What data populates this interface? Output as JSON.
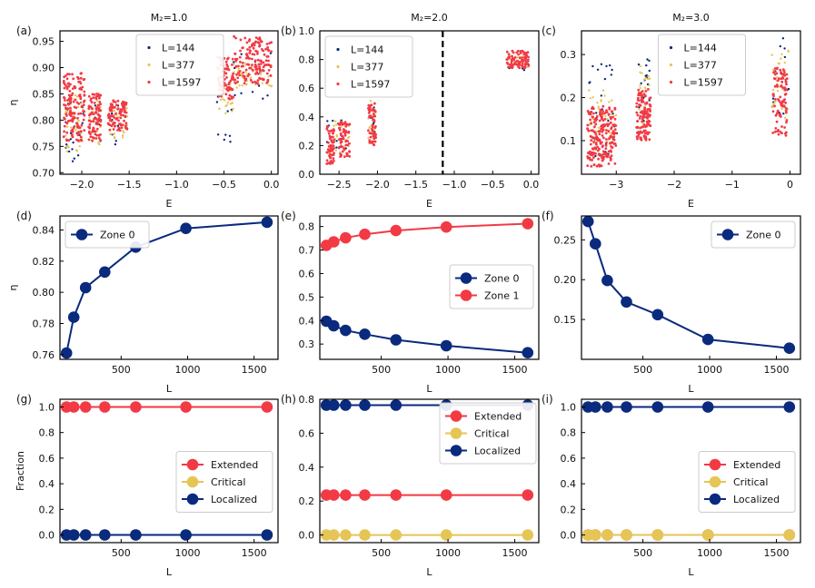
{
  "figure": {
    "palette": {
      "red": "#f23a45",
      "yellow": "#e5c556",
      "navy": "#0a2a7d",
      "axis": "#000000",
      "legend_border": "#cccccc"
    }
  },
  "chart_data": [
    {
      "id": "a",
      "panel_label": "(a)",
      "type": "scatter",
      "title": "M₂=1.0",
      "xlabel": "E",
      "ylabel": "η",
      "xlim": [
        -2.23,
        0.07
      ],
      "ylim": [
        0.697,
        0.97
      ],
      "xticks": [
        -2.0,
        -1.5,
        -1.0,
        -0.5,
        0.0
      ],
      "xtick_labels": [
        "−2.0",
        "−1.5",
        "−1.0",
        "−0.5",
        "0.0"
      ],
      "yticks": [
        0.7,
        0.75,
        0.8,
        0.85,
        0.9,
        0.95
      ],
      "ytick_labels": [
        "0.70",
        "0.75",
        "0.80",
        "0.85",
        "0.90",
        "0.95"
      ],
      "legend": {
        "position": "upper-center",
        "marker": "dot",
        "entries": [
          "L=144",
          "L=377",
          "L=1597"
        ]
      },
      "series": [
        {
          "name": "L=144",
          "color": "navy",
          "clusters": [
            {
              "x": [
                -2.18,
                -1.98
              ],
              "y": [
                0.72,
                0.84
              ],
              "n": 22
            },
            {
              "x": [
                -1.9,
                -1.78
              ],
              "y": [
                0.76,
                0.83
              ],
              "n": 10
            },
            {
              "x": [
                -1.7,
                -1.52
              ],
              "y": [
                0.75,
                0.83
              ],
              "n": 12
            },
            {
              "x": [
                -0.58,
                -0.42
              ],
              "y": [
                0.74,
                0.86
              ],
              "n": 10
            },
            {
              "x": [
                -0.4,
                0.0
              ],
              "y": [
                0.84,
                0.93
              ],
              "n": 18
            }
          ]
        },
        {
          "name": "L=377",
          "color": "yellow",
          "clusters": [
            {
              "x": [
                -2.18,
                -1.98
              ],
              "y": [
                0.74,
                0.85
              ],
              "n": 40
            },
            {
              "x": [
                -1.92,
                -1.8
              ],
              "y": [
                0.75,
                0.84
              ],
              "n": 24
            },
            {
              "x": [
                -1.72,
                -1.52
              ],
              "y": [
                0.76,
                0.83
              ],
              "n": 28
            },
            {
              "x": [
                -0.56,
                -0.4
              ],
              "y": [
                0.81,
                0.87
              ],
              "n": 22
            },
            {
              "x": [
                -0.4,
                0.0
              ],
              "y": [
                0.86,
                0.91
              ],
              "n": 40
            }
          ]
        },
        {
          "name": "L=1597",
          "color": "red",
          "clusters": [
            {
              "x": [
                -2.19,
                -1.97
              ],
              "y": [
                0.76,
                0.89
              ],
              "n": 140
            },
            {
              "x": [
                -1.93,
                -1.8
              ],
              "y": [
                0.76,
                0.85
              ],
              "n": 90
            },
            {
              "x": [
                -1.72,
                -1.52
              ],
              "y": [
                0.78,
                0.84
              ],
              "n": 90
            },
            {
              "x": [
                -0.57,
                -0.4
              ],
              "y": [
                0.84,
                0.92
              ],
              "n": 80
            },
            {
              "x": [
                -0.4,
                0.0
              ],
              "y": [
                0.87,
                0.96
              ],
              "n": 150
            }
          ]
        }
      ]
    },
    {
      "id": "b",
      "panel_label": "(b)",
      "type": "scatter",
      "title": "M₂=2.0",
      "xlabel": "E",
      "ylabel": "",
      "xlim": [
        -2.75,
        0.1
      ],
      "ylim": [
        0.0,
        1.0
      ],
      "xticks": [
        -2.5,
        -2.0,
        -1.5,
        -1.0,
        -0.5,
        0.0
      ],
      "xtick_labels": [
        "−2.5",
        "−2.0",
        "−1.5",
        "−1.0",
        "−0.5",
        "0.0"
      ],
      "yticks": [
        0.0,
        0.2,
        0.4,
        0.6,
        0.8,
        1.0
      ],
      "ytick_labels": [
        "0.0",
        "0.2",
        "0.4",
        "0.6",
        "0.8",
        "1.0"
      ],
      "vline": {
        "x": -1.15,
        "style": "dashed",
        "color": "#000000"
      },
      "legend": {
        "position": "upper-left",
        "marker": "dot",
        "entries": [
          "L=144",
          "L=377",
          "L=1597"
        ]
      },
      "series": [
        {
          "name": "L=144",
          "color": "navy",
          "clusters": [
            {
              "x": [
                -2.66,
                -2.36
              ],
              "y": [
                0.15,
                0.38
              ],
              "n": 14
            },
            {
              "x": [
                -2.12,
                -2.02
              ],
              "y": [
                0.28,
                0.48
              ],
              "n": 8
            },
            {
              "x": [
                -0.32,
                -0.02
              ],
              "y": [
                0.72,
                0.84
              ],
              "n": 12
            }
          ]
        },
        {
          "name": "L=377",
          "color": "yellow",
          "clusters": [
            {
              "x": [
                -2.66,
                -2.36
              ],
              "y": [
                0.12,
                0.38
              ],
              "n": 24
            },
            {
              "x": [
                -2.12,
                -2.02
              ],
              "y": [
                0.25,
                0.52
              ],
              "n": 14
            },
            {
              "x": [
                -0.32,
                -0.02
              ],
              "y": [
                0.74,
                0.84
              ],
              "n": 20
            }
          ]
        },
        {
          "name": "L=1597",
          "color": "red",
          "clusters": [
            {
              "x": [
                -2.66,
                -2.56
              ],
              "y": [
                0.07,
                0.35
              ],
              "n": 60
            },
            {
              "x": [
                -2.5,
                -2.36
              ],
              "y": [
                0.12,
                0.37
              ],
              "n": 70
            },
            {
              "x": [
                -2.12,
                -2.02
              ],
              "y": [
                0.2,
                0.5
              ],
              "n": 60
            },
            {
              "x": [
                -0.32,
                -0.02
              ],
              "y": [
                0.74,
                0.86
              ],
              "n": 80
            }
          ]
        }
      ]
    },
    {
      "id": "c",
      "panel_label": "(c)",
      "type": "scatter",
      "title": "M₂=3.0",
      "xlabel": "E",
      "ylabel": "",
      "xlim": [
        -3.6,
        0.18
      ],
      "ylim": [
        0.022,
        0.355
      ],
      "xticks": [
        -3,
        -2,
        -1,
        0
      ],
      "xtick_labels": [
        "−3",
        "−2",
        "−1",
        "0"
      ],
      "yticks": [
        0.1,
        0.2,
        0.3
      ],
      "ytick_labels": [
        "0.1",
        "0.2",
        "0.3"
      ],
      "legend": {
        "position": "upper-center",
        "marker": "dot",
        "entries": [
          "L=144",
          "L=377",
          "L=1597"
        ]
      },
      "series": [
        {
          "name": "L=144",
          "color": "navy",
          "clusters": [
            {
              "x": [
                -3.48,
                -2.98
              ],
              "y": [
                0.06,
                0.28
              ],
              "n": 30
            },
            {
              "x": [
                -2.62,
                -2.42
              ],
              "y": [
                0.14,
                0.3
              ],
              "n": 18
            },
            {
              "x": [
                -0.32,
                -0.02
              ],
              "y": [
                0.15,
                0.34
              ],
              "n": 14
            }
          ]
        },
        {
          "name": "L=377",
          "color": "yellow",
          "clusters": [
            {
              "x": [
                -3.48,
                -2.98
              ],
              "y": [
                0.06,
                0.22
              ],
              "n": 50
            },
            {
              "x": [
                -2.62,
                -2.42
              ],
              "y": [
                0.13,
                0.28
              ],
              "n": 30
            },
            {
              "x": [
                -0.32,
                -0.02
              ],
              "y": [
                0.15,
                0.31
              ],
              "n": 30
            }
          ]
        },
        {
          "name": "L=1597",
          "color": "red",
          "clusters": [
            {
              "x": [
                -3.5,
                -3.0
              ],
              "y": [
                0.04,
                0.18
              ],
              "n": 200
            },
            {
              "x": [
                -2.65,
                -2.4
              ],
              "y": [
                0.1,
                0.22
              ],
              "n": 120
            },
            {
              "x": [
                -0.3,
                -0.05
              ],
              "y": [
                0.11,
                0.27
              ],
              "n": 90
            }
          ]
        }
      ]
    },
    {
      "id": "d",
      "panel_label": "(d)",
      "type": "line",
      "xlabel": "L",
      "ylabel": "η",
      "xlim": [
        40,
        1680
      ],
      "ylim": [
        0.757,
        0.849
      ],
      "xticks": [
        500,
        1000,
        1500
      ],
      "xtick_labels": [
        "500",
        "1000",
        "1500"
      ],
      "yticks": [
        0.76,
        0.78,
        0.8,
        0.82,
        0.84
      ],
      "ytick_labels": [
        "0.76",
        "0.78",
        "0.80",
        "0.82",
        "0.84"
      ],
      "legend": {
        "position": "upper-left",
        "marker": "line-dot",
        "entries": [
          "Zone 0"
        ]
      },
      "x": [
        89,
        144,
        233,
        377,
        610,
        987,
        1597
      ],
      "series": [
        {
          "name": "Zone 0",
          "color": "navy",
          "values": [
            0.761,
            0.784,
            0.803,
            0.813,
            0.829,
            0.841,
            0.845
          ]
        }
      ]
    },
    {
      "id": "e",
      "panel_label": "(e)",
      "type": "line",
      "xlabel": "L",
      "ylabel": "",
      "xlim": [
        40,
        1680
      ],
      "ylim": [
        0.235,
        0.845
      ],
      "xticks": [
        500,
        1000,
        1500
      ],
      "xtick_labels": [
        "500",
        "1000",
        "1500"
      ],
      "yticks": [
        0.3,
        0.4,
        0.5,
        0.6,
        0.7,
        0.8
      ],
      "ytick_labels": [
        "0.3",
        "0.4",
        "0.5",
        "0.6",
        "0.7",
        "0.8"
      ],
      "legend": {
        "position": "center-right",
        "marker": "line-dot",
        "entries": [
          "Zone 0",
          "Zone 1"
        ]
      },
      "x": [
        89,
        144,
        233,
        377,
        610,
        987,
        1597
      ],
      "series": [
        {
          "name": "Zone 0",
          "color": "navy",
          "values": [
            0.397,
            0.378,
            0.358,
            0.342,
            0.318,
            0.293,
            0.263
          ]
        },
        {
          "name": "Zone 1",
          "color": "red",
          "values": [
            0.72,
            0.735,
            0.752,
            0.767,
            0.783,
            0.798,
            0.812
          ]
        }
      ]
    },
    {
      "id": "f",
      "panel_label": "(f)",
      "type": "line",
      "xlabel": "L",
      "ylabel": "",
      "xlim": [
        40,
        1680
      ],
      "ylim": [
        0.1,
        0.28
      ],
      "xticks": [
        500,
        1000,
        1500
      ],
      "xtick_labels": [
        "500",
        "1000",
        "1500"
      ],
      "yticks": [
        0.15,
        0.2,
        0.25
      ],
      "ytick_labels": [
        "0.15",
        "0.20",
        "0.25"
      ],
      "legend": {
        "position": "upper-right",
        "marker": "line-dot",
        "entries": [
          "Zone 0"
        ]
      },
      "x": [
        89,
        144,
        233,
        377,
        610,
        987,
        1597
      ],
      "series": [
        {
          "name": "Zone 0",
          "color": "navy",
          "values": [
            0.273,
            0.245,
            0.199,
            0.172,
            0.156,
            0.125,
            0.114
          ]
        }
      ]
    },
    {
      "id": "g",
      "panel_label": "(g)",
      "type": "line",
      "xlabel": "L",
      "ylabel": "Fraction",
      "xlim": [
        40,
        1680
      ],
      "ylim": [
        -0.06,
        1.06
      ],
      "xticks": [
        500,
        1000,
        1500
      ],
      "xtick_labels": [
        "500",
        "1000",
        "1500"
      ],
      "yticks": [
        0.0,
        0.2,
        0.4,
        0.6,
        0.8,
        1.0
      ],
      "ytick_labels": [
        "0.0",
        "0.2",
        "0.4",
        "0.6",
        "0.8",
        "1.0"
      ],
      "legend": {
        "position": "center-right",
        "marker": "line-dot",
        "entries": [
          "Extended",
          "Critical",
          "Localized"
        ]
      },
      "x": [
        89,
        144,
        233,
        377,
        610,
        987,
        1597
      ],
      "series": [
        {
          "name": "Critical",
          "color": "yellow",
          "values": [
            0,
            0,
            0,
            0,
            0,
            0,
            0
          ]
        },
        {
          "name": "Localized",
          "color": "navy",
          "values": [
            0,
            0,
            0,
            0,
            0,
            0,
            0
          ]
        },
        {
          "name": "Extended",
          "color": "red",
          "values": [
            1,
            1,
            1,
            1,
            1,
            1,
            1
          ]
        }
      ]
    },
    {
      "id": "h",
      "panel_label": "(h)",
      "type": "line",
      "xlabel": "L",
      "ylabel": "",
      "xlim": [
        40,
        1680
      ],
      "ylim": [
        -0.045,
        0.8
      ],
      "xticks": [
        500,
        1000,
        1500
      ],
      "xtick_labels": [
        "500",
        "1000",
        "1500"
      ],
      "yticks": [
        0.0,
        0.2,
        0.4,
        0.6,
        0.8
      ],
      "ytick_labels": [
        "0.0",
        "0.2",
        "0.4",
        "0.6",
        "0.8"
      ],
      "legend": {
        "position": "upper-center",
        "marker": "line-dot",
        "entries": [
          "Extended",
          "Critical",
          "Localized"
        ]
      },
      "x": [
        89,
        144,
        233,
        377,
        610,
        987,
        1597
      ],
      "series": [
        {
          "name": "Critical",
          "color": "yellow",
          "values": [
            0,
            0,
            0,
            0,
            0,
            0,
            0
          ]
        },
        {
          "name": "Extended",
          "color": "red",
          "values": [
            0.235,
            0.235,
            0.235,
            0.235,
            0.235,
            0.235,
            0.235
          ]
        },
        {
          "name": "Localized",
          "color": "navy",
          "values": [
            0.765,
            0.765,
            0.765,
            0.765,
            0.765,
            0.765,
            0.765
          ]
        }
      ]
    },
    {
      "id": "i",
      "panel_label": "(i)",
      "type": "line",
      "xlabel": "L",
      "ylabel": "",
      "xlim": [
        40,
        1680
      ],
      "ylim": [
        -0.06,
        1.06
      ],
      "xticks": [
        500,
        1000,
        1500
      ],
      "xtick_labels": [
        "500",
        "1000",
        "1500"
      ],
      "yticks": [
        0.0,
        0.2,
        0.4,
        0.6,
        0.8,
        1.0
      ],
      "ytick_labels": [
        "0.0",
        "0.2",
        "0.4",
        "0.6",
        "0.8",
        "1.0"
      ],
      "legend": {
        "position": "center-right",
        "marker": "line-dot",
        "entries": [
          "Extended",
          "Critical",
          "Localized"
        ]
      },
      "x": [
        89,
        144,
        233,
        377,
        610,
        987,
        1597
      ],
      "series": [
        {
          "name": "Extended",
          "color": "red",
          "values": [
            0,
            0,
            0,
            0,
            0,
            0,
            0
          ]
        },
        {
          "name": "Critical",
          "color": "yellow",
          "values": [
            0,
            0,
            0,
            0,
            0,
            0,
            0
          ]
        },
        {
          "name": "Localized",
          "color": "navy",
          "values": [
            1,
            1,
            1,
            1,
            1,
            1,
            1
          ]
        }
      ]
    }
  ]
}
